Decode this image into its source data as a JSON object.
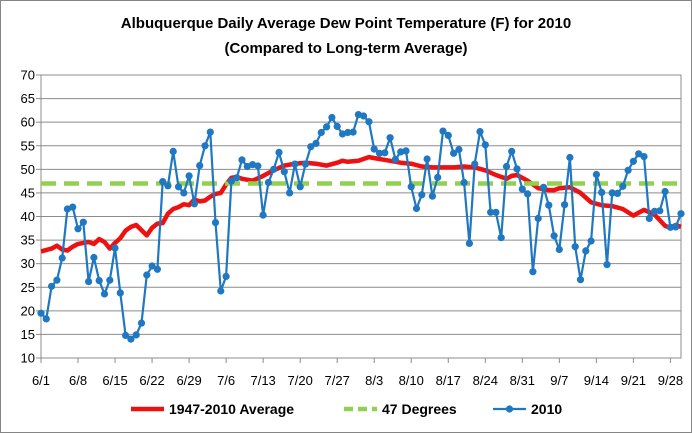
{
  "chart_data": {
    "type": "line",
    "title": "Albuquerque Daily Average Dew Point Temperature (F) for 2010",
    "subtitle": "(Compared to Long-term Average)",
    "xlabel": "",
    "ylabel": "",
    "ylim": [
      10,
      70
    ],
    "yticks": [
      10,
      15,
      20,
      25,
      30,
      35,
      40,
      45,
      50,
      55,
      60,
      65,
      70
    ],
    "xlim": [
      0,
      121
    ],
    "xtick_positions": [
      0,
      7,
      14,
      21,
      28,
      35,
      42,
      49,
      56,
      63,
      70,
      77,
      84,
      91,
      98,
      105,
      112,
      119
    ],
    "xtick_labels": [
      "6/1",
      "6/8",
      "6/15",
      "6/22",
      "6/29",
      "7/6",
      "7/13",
      "7/20",
      "7/27",
      "8/3",
      "8/10",
      "8/17",
      "8/24",
      "8/31",
      "9/7",
      "9/14",
      "9/21",
      "9/28"
    ],
    "grid": "horizontal",
    "legend": "bottom",
    "series": [
      {
        "name": "1947-2010 Average",
        "color": "#ee1111",
        "style": "solid-thick",
        "x": [
          0,
          2,
          3,
          4,
          5,
          6,
          7,
          8,
          9,
          10,
          11,
          12,
          13,
          14,
          15,
          16,
          17,
          18,
          20,
          21,
          22,
          23,
          24,
          25,
          26,
          27,
          28,
          29,
          30,
          31,
          32,
          33,
          34,
          35,
          36,
          37,
          38,
          39,
          40,
          42,
          44,
          46,
          48,
          50,
          52,
          54,
          56,
          57,
          58,
          60,
          62,
          64,
          66,
          68,
          70,
          72,
          74,
          76,
          78,
          80,
          82,
          84,
          86,
          88,
          89,
          90,
          92,
          94,
          96,
          97,
          98,
          100,
          102,
          104,
          106,
          108,
          110,
          112,
          114,
          116,
          118,
          119,
          120,
          121
        ],
        "values": [
          32.6,
          33.2,
          33.8,
          33.0,
          32.8,
          33.6,
          34.2,
          34.4,
          34.6,
          34.2,
          35.2,
          34.6,
          33.2,
          34.4,
          35.4,
          37.0,
          37.8,
          38.2,
          36.0,
          37.6,
          38.5,
          38.6,
          40.6,
          41.6,
          42.0,
          42.6,
          42.4,
          43.6,
          43.2,
          43.4,
          44.2,
          44.8,
          45.0,
          46.8,
          48.2,
          48.4,
          48.0,
          47.8,
          47.6,
          48.6,
          49.8,
          50.8,
          51.2,
          51.4,
          51.2,
          50.8,
          51.4,
          51.8,
          51.6,
          51.8,
          52.6,
          52.2,
          51.8,
          51.4,
          51.2,
          50.6,
          50.4,
          50.4,
          50.4,
          50.6,
          50.4,
          49.8,
          48.8,
          48.0,
          48.6,
          48.8,
          47.6,
          46.0,
          45.6,
          45.6,
          46.0,
          46.2,
          45.0,
          43.0,
          42.4,
          42.2,
          41.6,
          40.2,
          41.4,
          40.4,
          38.0,
          37.6,
          38.2,
          37.8
        ]
      },
      {
        "name": "47 Degrees",
        "color": "#92d050",
        "style": "dashed-thick",
        "x": [
          0,
          121
        ],
        "values": [
          47,
          47
        ]
      },
      {
        "name": "2010",
        "color": "#1f78c1",
        "style": "line-markers",
        "x": [
          0,
          1,
          2,
          3,
          4,
          5,
          6,
          7,
          8,
          9,
          10,
          11,
          12,
          13,
          14,
          15,
          16,
          17,
          18,
          19,
          20,
          21,
          22,
          23,
          24,
          25,
          26,
          27,
          28,
          29,
          30,
          31,
          32,
          33,
          34,
          35,
          36,
          37,
          38,
          39,
          40,
          41,
          42,
          43,
          44,
          45,
          46,
          47,
          48,
          49,
          50,
          51,
          52,
          53,
          54,
          55,
          56,
          57,
          58,
          59,
          60,
          61,
          62,
          63,
          64,
          65,
          66,
          67,
          68,
          69,
          70,
          71,
          72,
          73,
          74,
          75,
          76,
          77,
          78,
          79,
          80,
          81,
          82,
          83,
          84,
          85,
          86,
          87,
          88,
          89,
          90,
          91,
          92,
          93,
          94,
          95,
          96,
          97,
          98,
          99,
          100,
          101,
          102,
          103,
          104,
          105,
          106,
          107,
          108,
          109,
          110,
          111,
          112,
          113,
          114,
          115,
          116,
          117,
          118,
          119,
          120,
          121
        ],
        "values": [
          19.5,
          18.3,
          25.2,
          26.5,
          31.2,
          41.6,
          42.0,
          37.4,
          38.8,
          26.2,
          31.3,
          26.4,
          23.6,
          26.5,
          33.3,
          23.8,
          14.8,
          14.0,
          14.9,
          17.4,
          27.6,
          29.5,
          28.8,
          47.4,
          46.5,
          53.8,
          46.3,
          45.0,
          48.6,
          42.7,
          50.8,
          55.0,
          57.9,
          38.7,
          24.2,
          27.3,
          47.5,
          48.2,
          52.0,
          50.6,
          51.0,
          50.7,
          40.3,
          47.2,
          50.0,
          53.6,
          49.5,
          45.0,
          51.1,
          46.3,
          51.1,
          54.8,
          55.5,
          57.8,
          59.0,
          61.0,
          59.1,
          57.5,
          57.8,
          57.9,
          61.6,
          61.3,
          60.1,
          54.3,
          53.4,
          53.5,
          56.7,
          52.1,
          53.7,
          53.9,
          46.3,
          41.7,
          44.6,
          52.2,
          44.3,
          48.3,
          58.1,
          57.2,
          53.4,
          54.2,
          47.2,
          34.3,
          51.1,
          58.0,
          55.2,
          40.9,
          40.9,
          35.5,
          50.6,
          53.8,
          50.1,
          45.8,
          44.8,
          28.3,
          39.6,
          46.2,
          42.4,
          35.9,
          33.0,
          42.5,
          52.5,
          33.6,
          26.6,
          32.7,
          34.8,
          48.9,
          45.1,
          29.8,
          45.0,
          44.9,
          46.4,
          49.8,
          51.7,
          53.3,
          52.7,
          39.6,
          41.1,
          41.2,
          45.3,
          37.7,
          37.8,
          40.6
        ]
      }
    ]
  }
}
